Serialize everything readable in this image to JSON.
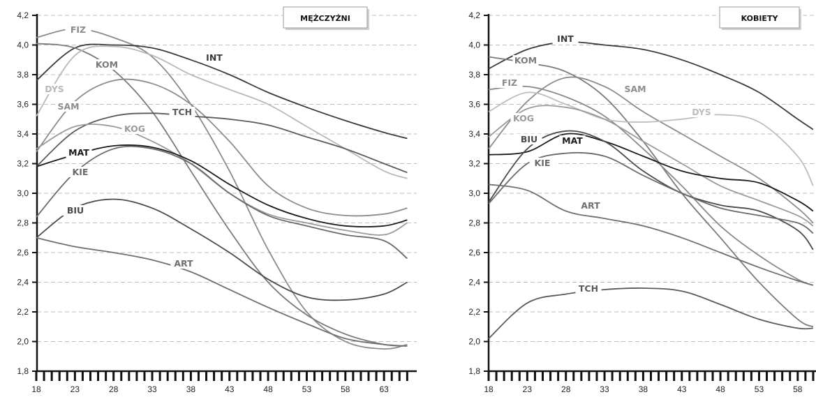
{
  "chart_data": [
    {
      "type": "line",
      "title": "MĘŻCZYŹNI",
      "xlabel": "",
      "ylabel": "",
      "xlim": [
        18,
        66
      ],
      "ylim": [
        1.8,
        4.2
      ],
      "xticks": [
        18,
        23,
        28,
        33,
        38,
        43,
        48,
        53,
        58,
        63
      ],
      "yticks": [
        1.8,
        2.0,
        2.2,
        2.4,
        2.6,
        2.8,
        3.0,
        3.2,
        3.4,
        3.6,
        3.8,
        4.0,
        4.2
      ],
      "grid": "horizontal-dashed",
      "series": [
        {
          "name": "FIZ",
          "color": "#8a8a8a",
          "points": [
            [
              18,
              4.05
            ],
            [
              23,
              4.11
            ],
            [
              28,
              4.05
            ],
            [
              33,
              3.92
            ],
            [
              38,
              3.6
            ],
            [
              43,
              3.15
            ],
            [
              48,
              2.62
            ],
            [
              53,
              2.2
            ],
            [
              58,
              2.0
            ],
            [
              63,
              1.95
            ],
            [
              66,
              1.98
            ]
          ]
        },
        {
          "name": "INT",
          "color": "#3a3a3a",
          "points": [
            [
              18,
              3.76
            ],
            [
              23,
              3.98
            ],
            [
              28,
              4.0
            ],
            [
              33,
              3.98
            ],
            [
              38,
              3.9
            ],
            [
              43,
              3.8
            ],
            [
              48,
              3.68
            ],
            [
              53,
              3.58
            ],
            [
              58,
              3.49
            ],
            [
              63,
              3.41
            ],
            [
              66,
              3.37
            ]
          ]
        },
        {
          "name": "KOM",
          "color": "#7a7a7a",
          "points": [
            [
              18,
              4.01
            ],
            [
              23,
              3.98
            ],
            [
              28,
              3.83
            ],
            [
              33,
              3.55
            ],
            [
              38,
              3.15
            ],
            [
              43,
              2.75
            ],
            [
              48,
              2.4
            ],
            [
              53,
              2.18
            ],
            [
              58,
              2.05
            ],
            [
              63,
              1.98
            ],
            [
              66,
              1.97
            ]
          ]
        },
        {
          "name": "DYS",
          "color": "#b8b8b8",
          "points": [
            [
              18,
              3.52
            ],
            [
              23,
              3.93
            ],
            [
              28,
              3.99
            ],
            [
              33,
              3.93
            ],
            [
              38,
              3.8
            ],
            [
              43,
              3.7
            ],
            [
              48,
              3.6
            ],
            [
              53,
              3.45
            ],
            [
              58,
              3.3
            ],
            [
              63,
              3.15
            ],
            [
              66,
              3.1
            ]
          ]
        },
        {
          "name": "SAM",
          "color": "#8c8c8c",
          "points": [
            [
              18,
              3.28
            ],
            [
              23,
              3.62
            ],
            [
              28,
              3.76
            ],
            [
              33,
              3.74
            ],
            [
              38,
              3.6
            ],
            [
              43,
              3.35
            ],
            [
              48,
              3.05
            ],
            [
              53,
              2.9
            ],
            [
              58,
              2.85
            ],
            [
              63,
              2.86
            ],
            [
              66,
              2.9
            ]
          ]
        },
        {
          "name": "TCH",
          "color": "#5a5a5a",
          "points": [
            [
              18,
              3.18
            ],
            [
              23,
              3.42
            ],
            [
              28,
              3.52
            ],
            [
              33,
              3.54
            ],
            [
              38,
              3.52
            ],
            [
              43,
              3.5
            ],
            [
              48,
              3.46
            ],
            [
              53,
              3.38
            ],
            [
              58,
              3.3
            ],
            [
              63,
              3.2
            ],
            [
              66,
              3.14
            ]
          ]
        },
        {
          "name": "KOG",
          "color": "#9a9a9a",
          "points": [
            [
              18,
              3.3
            ],
            [
              23,
              3.45
            ],
            [
              28,
              3.45
            ],
            [
              33,
              3.35
            ],
            [
              38,
              3.2
            ],
            [
              43,
              3.0
            ],
            [
              48,
              2.86
            ],
            [
              53,
              2.8
            ],
            [
              58,
              2.75
            ],
            [
              63,
              2.72
            ],
            [
              66,
              2.8
            ]
          ]
        },
        {
          "name": "MAT",
          "color": "#1a1a1a",
          "points": [
            [
              18,
              3.18
            ],
            [
              23,
              3.26
            ],
            [
              28,
              3.32
            ],
            [
              33,
              3.31
            ],
            [
              38,
              3.22
            ],
            [
              43,
              3.06
            ],
            [
              48,
              2.92
            ],
            [
              53,
              2.83
            ],
            [
              58,
              2.78
            ],
            [
              63,
              2.78
            ],
            [
              66,
              2.82
            ]
          ]
        },
        {
          "name": "KIE",
          "color": "#6a6a6a",
          "points": [
            [
              18,
              2.84
            ],
            [
              23,
              3.14
            ],
            [
              28,
              3.3
            ],
            [
              33,
              3.3
            ],
            [
              38,
              3.2
            ],
            [
              43,
              3.0
            ],
            [
              48,
              2.85
            ],
            [
              53,
              2.78
            ],
            [
              58,
              2.72
            ],
            [
              63,
              2.68
            ],
            [
              66,
              2.56
            ]
          ]
        },
        {
          "name": "BIU",
          "color": "#4a4a4a",
          "points": [
            [
              18,
              2.7
            ],
            [
              23,
              2.9
            ],
            [
              28,
              2.96
            ],
            [
              33,
              2.9
            ],
            [
              38,
              2.76
            ],
            [
              43,
              2.6
            ],
            [
              48,
              2.42
            ],
            [
              53,
              2.3
            ],
            [
              58,
              2.28
            ],
            [
              63,
              2.32
            ],
            [
              66,
              2.4
            ]
          ]
        },
        {
          "name": "ART",
          "color": "#6f6f6f",
          "points": [
            [
              18,
              2.7
            ],
            [
              23,
              2.64
            ],
            [
              28,
              2.6
            ],
            [
              33,
              2.55
            ],
            [
              38,
              2.47
            ],
            [
              43,
              2.35
            ],
            [
              48,
              2.23
            ],
            [
              53,
              2.12
            ],
            [
              58,
              2.02
            ],
            [
              63,
              1.98
            ],
            [
              66,
              1.97
            ]
          ]
        }
      ]
    },
    {
      "type": "line",
      "title": "KOBIETY",
      "xlabel": "",
      "ylabel": "",
      "xlim": [
        18,
        60
      ],
      "ylim": [
        1.8,
        4.2
      ],
      "xticks": [
        18,
        23,
        28,
        33,
        38,
        43,
        48,
        53,
        58
      ],
      "yticks": [
        1.8,
        2.0,
        2.2,
        2.4,
        2.6,
        2.8,
        3.0,
        3.2,
        3.4,
        3.6,
        3.8,
        4.0,
        4.2
      ],
      "grid": "horizontal-dashed",
      "series": [
        {
          "name": "INT",
          "color": "#3a3a3a",
          "points": [
            [
              18,
              3.84
            ],
            [
              23,
              3.97
            ],
            [
              28,
              4.02
            ],
            [
              33,
              4.0
            ],
            [
              38,
              3.97
            ],
            [
              43,
              3.9
            ],
            [
              48,
              3.8
            ],
            [
              53,
              3.68
            ],
            [
              58,
              3.5
            ],
            [
              60,
              3.43
            ]
          ]
        },
        {
          "name": "KOM",
          "color": "#7a7a7a",
          "points": [
            [
              18,
              3.92
            ],
            [
              23,
              3.88
            ],
            [
              28,
              3.82
            ],
            [
              33,
              3.65
            ],
            [
              38,
              3.35
            ],
            [
              43,
              3.0
            ],
            [
              48,
              2.7
            ],
            [
              53,
              2.4
            ],
            [
              58,
              2.15
            ],
            [
              60,
              2.1
            ]
          ]
        },
        {
          "name": "FIZ",
          "color": "#8a8a8a",
          "points": [
            [
              18,
              3.7
            ],
            [
              23,
              3.72
            ],
            [
              28,
              3.65
            ],
            [
              33,
              3.52
            ],
            [
              38,
              3.3
            ],
            [
              43,
              3.05
            ],
            [
              48,
              2.78
            ],
            [
              53,
              2.58
            ],
            [
              58,
              2.42
            ],
            [
              60,
              2.38
            ]
          ]
        },
        {
          "name": "SAM",
          "color": "#8c8c8c",
          "points": [
            [
              18,
              3.3
            ],
            [
              23,
              3.62
            ],
            [
              28,
              3.78
            ],
            [
              33,
              3.72
            ],
            [
              38,
              3.55
            ],
            [
              43,
              3.4
            ],
            [
              48,
              3.25
            ],
            [
              53,
              3.1
            ],
            [
              58,
              2.9
            ],
            [
              60,
              2.8
            ]
          ]
        },
        {
          "name": "DYS",
          "color": "#bdbdbd",
          "points": [
            [
              18,
              3.55
            ],
            [
              23,
              3.68
            ],
            [
              28,
              3.6
            ],
            [
              33,
              3.5
            ],
            [
              38,
              3.48
            ],
            [
              43,
              3.5
            ],
            [
              48,
              3.53
            ],
            [
              53,
              3.48
            ],
            [
              58,
              3.25
            ],
            [
              60,
              3.05
            ]
          ]
        },
        {
          "name": "KOG",
          "color": "#9a9a9a",
          "points": [
            [
              18,
              3.38
            ],
            [
              23,
              3.57
            ],
            [
              28,
              3.58
            ],
            [
              33,
              3.5
            ],
            [
              38,
              3.35
            ],
            [
              43,
              3.2
            ],
            [
              48,
              3.05
            ],
            [
              53,
              2.95
            ],
            [
              58,
              2.85
            ],
            [
              60,
              2.78
            ]
          ]
        },
        {
          "name": "MAT",
          "color": "#1a1a1a",
          "points": [
            [
              18,
              3.26
            ],
            [
              23,
              3.28
            ],
            [
              28,
              3.4
            ],
            [
              33,
              3.35
            ],
            [
              38,
              3.25
            ],
            [
              43,
              3.15
            ],
            [
              48,
              3.1
            ],
            [
              53,
              3.07
            ],
            [
              58,
              2.95
            ],
            [
              60,
              2.88
            ]
          ]
        },
        {
          "name": "BIU",
          "color": "#4a4a4a",
          "points": [
            [
              18,
              2.94
            ],
            [
              23,
              3.3
            ],
            [
              28,
              3.42
            ],
            [
              33,
              3.35
            ],
            [
              38,
              3.15
            ],
            [
              43,
              3.0
            ],
            [
              48,
              2.92
            ],
            [
              53,
              2.88
            ],
            [
              58,
              2.75
            ],
            [
              60,
              2.62
            ]
          ]
        },
        {
          "name": "KIE",
          "color": "#6a6a6a",
          "points": [
            [
              18,
              2.93
            ],
            [
              23,
              3.2
            ],
            [
              28,
              3.27
            ],
            [
              33,
              3.25
            ],
            [
              38,
              3.12
            ],
            [
              43,
              3.0
            ],
            [
              48,
              2.9
            ],
            [
              53,
              2.85
            ],
            [
              58,
              2.8
            ],
            [
              60,
              2.73
            ]
          ]
        },
        {
          "name": "ART",
          "color": "#6f6f6f",
          "points": [
            [
              18,
              3.06
            ],
            [
              23,
              3.02
            ],
            [
              28,
              2.88
            ],
            [
              33,
              2.83
            ],
            [
              38,
              2.78
            ],
            [
              43,
              2.7
            ],
            [
              48,
              2.6
            ],
            [
              53,
              2.5
            ],
            [
              58,
              2.41
            ],
            [
              60,
              2.38
            ]
          ]
        },
        {
          "name": "TCH",
          "color": "#5a5a5a",
          "points": [
            [
              18,
              2.02
            ],
            [
              23,
              2.26
            ],
            [
              28,
              2.32
            ],
            [
              33,
              2.35
            ],
            [
              38,
              2.36
            ],
            [
              43,
              2.34
            ],
            [
              48,
              2.25
            ],
            [
              53,
              2.15
            ],
            [
              58,
              2.09
            ],
            [
              60,
              2.09
            ]
          ]
        }
      ]
    }
  ]
}
